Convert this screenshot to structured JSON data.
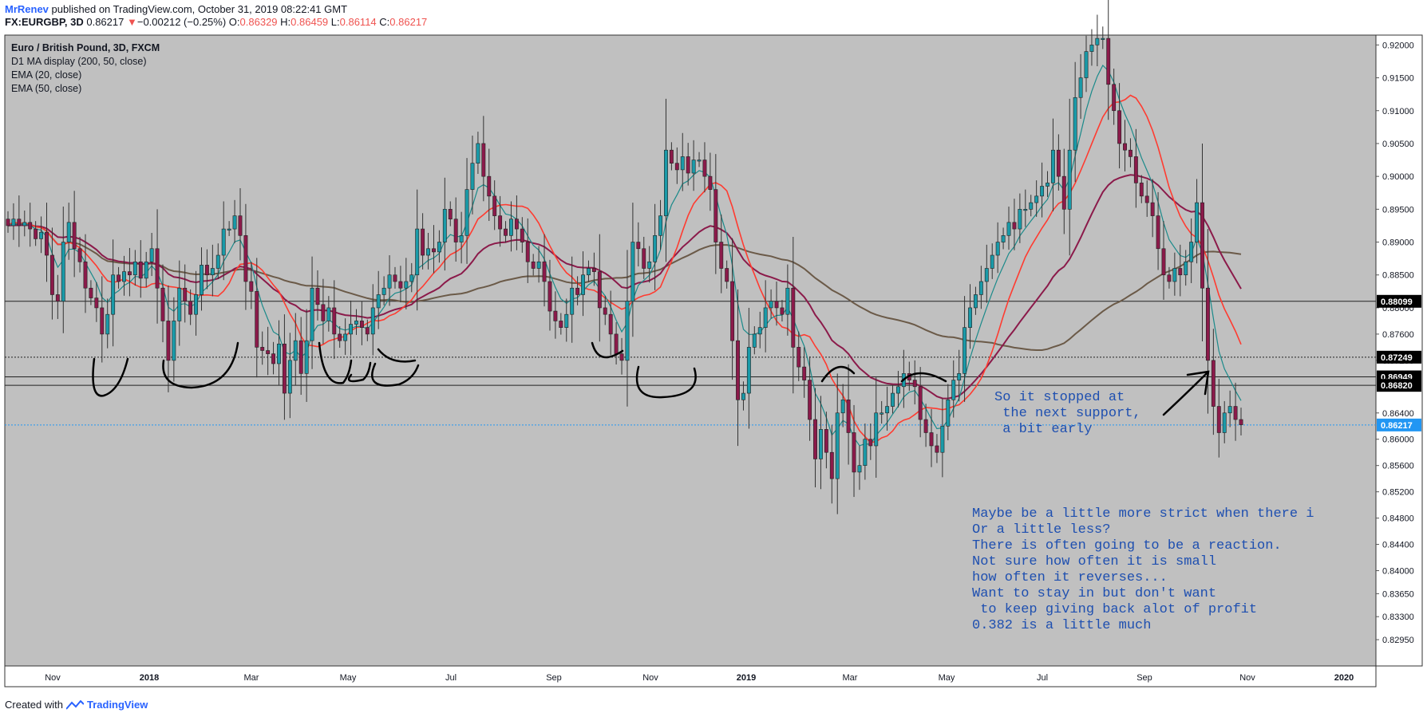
{
  "header": {
    "author": "MrRenev",
    "published": "published on TradingView.com, October 31, 2019 08:22:41 GMT",
    "symbol": "FX:EURGBP, 3D",
    "last": "0.86217",
    "change_arrow": "▼",
    "change": "−0.00212 (−0.25%)",
    "o_label": "O:",
    "o_val": "0.86329",
    "h_label": "H:",
    "h_val": "0.86459",
    "l_label": "L:",
    "l_val": "0.86114",
    "c_label": "C:",
    "c_val": "0.86217"
  },
  "legend": [
    "Euro / British Pound, 3D, FXCM",
    "D1 MA display (200, 50, close)",
    "EMA (20, close)",
    "EMA (50, close)"
  ],
  "footer": {
    "created": "Created with",
    "brand": "TradingView"
  },
  "annotations": {
    "note1": [
      "So it stopped at",
      " the next support,",
      " a bit early"
    ],
    "note2": [
      "Maybe be a little more strict when there i",
      "Or a little less?",
      "There is often going to be a reaction.",
      "Not sure how often it is small",
      "how often it reverses...",
      "Want to stay in but don't want",
      " to keep giving back alot of profit",
      "0.382 is a little much"
    ]
  },
  "colors": {
    "background": "#c0c0c0",
    "up": "#1a9aa8",
    "down": "#8b1a4a",
    "ema_fast": "#1a8a8a",
    "ema_red": "#ff3b30",
    "ma_maroon": "#8b1a4a",
    "ma_brown": "#6b5a48",
    "last_price": "#2196f3",
    "annotation": "#1e4fb0"
  },
  "chart_data": {
    "type": "candlestick",
    "title": "Euro / British Pound, 3D, FXCM",
    "y_ticks": [
      "0.92000",
      "0.91500",
      "0.91000",
      "0.90500",
      "0.90000",
      "0.89500",
      "0.89000",
      "0.88500",
      "0.88000",
      "0.87600",
      "0.87200",
      "0.86400",
      "0.86000",
      "0.85600",
      "0.85200",
      "0.84800",
      "0.84400",
      "0.84000",
      "0.83650",
      "0.83300",
      "0.82950"
    ],
    "ylim": [
      0.8255,
      0.9215
    ],
    "x_ticks": [
      "Nov",
      "2018",
      "Mar",
      "May",
      "Jul",
      "Sep",
      "Nov",
      "2019",
      "Mar",
      "May",
      "Jul",
      "Sep",
      "Nov",
      "2020"
    ],
    "price_levels": [
      {
        "label": "0.88099",
        "value": 0.88099,
        "style": "solid"
      },
      {
        "label": "0.87249",
        "value": 0.87249,
        "style": "dotted"
      },
      {
        "label": "0.86949",
        "value": 0.86949,
        "style": "solid"
      },
      {
        "label": "0.86820",
        "value": 0.8682,
        "style": "solid"
      },
      {
        "label": "0.86217",
        "value": 0.86217,
        "style": "last"
      }
    ],
    "candles_close": [
      0.8925,
      0.8935,
      0.8925,
      0.893,
      0.892,
      0.8905,
      0.8915,
      0.888,
      0.882,
      0.881,
      0.89,
      0.893,
      0.889,
      0.887,
      0.883,
      0.8815,
      0.88,
      0.876,
      0.879,
      0.885,
      0.884,
      0.8855,
      0.885,
      0.887,
      0.8845,
      0.887,
      0.889,
      0.883,
      0.878,
      0.872,
      0.878,
      0.883,
      0.881,
      0.879,
      0.882,
      0.8865,
      0.885,
      0.886,
      0.888,
      0.892,
      0.892,
      0.894,
      0.891,
      0.884,
      0.8825,
      0.874,
      0.8735,
      0.873,
      0.8715,
      0.8745,
      0.867,
      0.872,
      0.875,
      0.87,
      0.875,
      0.883,
      0.8805,
      0.878,
      0.88,
      0.876,
      0.875,
      0.876,
      0.8775,
      0.878,
      0.877,
      0.876,
      0.88,
      0.882,
      0.883,
      0.885,
      0.884,
      0.883,
      0.884,
      0.885,
      0.892,
      0.888,
      0.889,
      0.8885,
      0.89,
      0.895,
      0.8935,
      0.89,
      0.891,
      0.898,
      0.902,
      0.905,
      0.9,
      0.897,
      0.894,
      0.892,
      0.891,
      0.8935,
      0.892,
      0.89,
      0.887,
      0.886,
      0.887,
      0.884,
      0.8795,
      0.878,
      0.877,
      0.879,
      0.883,
      0.882,
      0.885,
      0.886,
      0.8855,
      0.88,
      0.879,
      0.876,
      0.873,
      0.872,
      0.881,
      0.89,
      0.889,
      0.886,
      0.887,
      0.891,
      0.894,
      0.904,
      0.902,
      0.901,
      0.903,
      0.9005,
      0.9025,
      0.9025,
      0.9,
      0.898,
      0.89,
      0.886,
      0.884,
      0.875,
      0.866,
      0.867,
      0.874,
      0.876,
      0.877,
      0.88,
      0.881,
      0.88,
      0.879,
      0.883,
      0.874,
      0.871,
      0.869,
      0.863,
      0.857,
      0.8615,
      0.858,
      0.854,
      0.864,
      0.866,
      0.861,
      0.855,
      0.856,
      0.86,
      0.859,
      0.864,
      0.864,
      0.865,
      0.867,
      0.868,
      0.87,
      0.869,
      0.868,
      0.863,
      0.861,
      0.859,
      0.858,
      0.862,
      0.866,
      0.869,
      0.87,
      0.877,
      0.88,
      0.882,
      0.884,
      0.886,
      0.888,
      0.89,
      0.891,
      0.893,
      0.892,
      0.895,
      0.895,
      0.896,
      0.897,
      0.8985,
      0.899,
      0.904,
      0.9,
      0.895,
      0.904,
      0.912,
      0.915,
      0.919,
      0.92,
      0.921,
      0.921,
      0.914,
      0.91,
      0.905,
      0.904,
      0.903,
      0.899,
      0.897,
      0.896,
      0.894,
      0.889,
      0.885,
      0.884,
      0.886,
      0.885,
      0.887,
      0.89,
      0.896,
      0.883,
      0.872,
      0.865,
      0.861,
      0.864,
      0.865,
      0.863,
      0.8622
    ]
  }
}
